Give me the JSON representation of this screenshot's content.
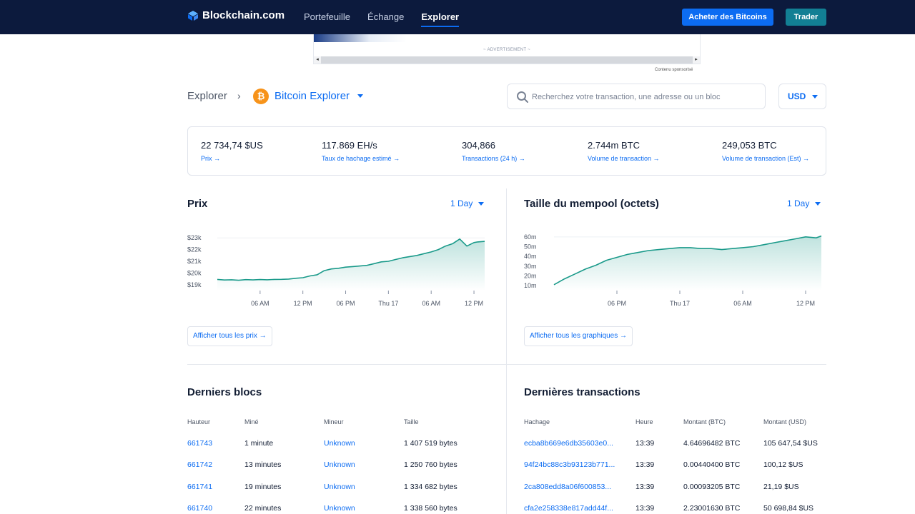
{
  "header": {
    "logo": "Blockchain.com",
    "nav": [
      "Portefeuille",
      "Échange",
      "Explorer"
    ],
    "buy_button": "Acheter des Bitcoins",
    "trade_button": "Trader",
    "colors": {
      "bar": "#0c1a3d",
      "accent": "#0c6cf2",
      "trade": "#127f94"
    }
  },
  "ad": {
    "label": "~ ADVERTISEMENT ~",
    "sponsored": "Contenu sponsorisé"
  },
  "breadcrumb": {
    "root": "Explorer",
    "separator": "›",
    "current": "Bitcoin Explorer",
    "coin_icon": "bitcoin-icon"
  },
  "search": {
    "placeholder": "Recherchez votre transaction, une adresse ou un bloc"
  },
  "currency": "USD",
  "stats": [
    {
      "value": "22 734,74 $US",
      "label": "Prix →"
    },
    {
      "value": "117.869 EH/s",
      "label": "Taux de hachage estimé →"
    },
    {
      "value": "304,866",
      "label": "Transactions (24 h) →"
    },
    {
      "value": "2.744m BTC",
      "label": "Volume de transaction →"
    },
    {
      "value": "249,053 BTC",
      "label": "Volume de transaction (Est) →"
    }
  ],
  "price_panel": {
    "title": "Prix",
    "range": "1 Day",
    "link": "Afficher tous les prix →"
  },
  "mempool_panel": {
    "title": "Taille du mempool (octets)",
    "range": "1 Day",
    "link": "Afficher tous les graphiques →"
  },
  "chart_data": [
    {
      "type": "area",
      "title": "Prix",
      "y_ticks": [
        "$23k",
        "$22k",
        "$21k",
        "$20k",
        "$19k"
      ],
      "y_tick_values": [
        23000,
        22000,
        21000,
        20000,
        19000
      ],
      "x_ticks": [
        "06 AM",
        "12 PM",
        "06 PM",
        "Thu 17",
        "06 AM",
        "12 PM"
      ],
      "x_tick_positions": [
        6,
        12,
        18,
        24,
        30,
        36
      ],
      "ylim": [
        18500,
        23500
      ],
      "xlim": [
        0,
        37.5
      ],
      "color": "#1a9a8a",
      "series": [
        {
          "x": [
            0,
            1,
            2,
            3,
            4,
            5,
            6,
            7,
            8,
            9,
            10,
            11,
            12,
            13,
            14,
            15,
            16,
            17,
            18,
            19,
            20,
            21,
            22,
            23,
            24,
            25,
            26,
            27,
            28,
            29,
            30,
            31,
            32,
            33,
            34,
            35,
            36,
            36.5,
            37.5
          ],
          "values": [
            19450,
            19400,
            19420,
            19380,
            19430,
            19410,
            19440,
            19420,
            19450,
            19460,
            19480,
            19550,
            19600,
            19750,
            19850,
            20200,
            20350,
            20400,
            20500,
            20550,
            20600,
            20650,
            20800,
            20950,
            21000,
            21150,
            21300,
            21400,
            21500,
            21650,
            21800,
            22000,
            22300,
            22500,
            22900,
            22300,
            22600,
            22650,
            22700
          ]
        }
      ]
    },
    {
      "type": "area",
      "title": "Taille du mempool (octets)",
      "y_ticks": [
        "60m",
        "50m",
        "40m",
        "30m",
        "20m",
        "10m"
      ],
      "y_tick_values": [
        60,
        50,
        40,
        30,
        20,
        10
      ],
      "x_ticks": [
        "06 PM",
        "Thu 17",
        "06 AM",
        "12 PM"
      ],
      "x_tick_positions": [
        6,
        12,
        18,
        24
      ],
      "ylim": [
        5,
        65
      ],
      "xlim": [
        0,
        25.5
      ],
      "color": "#1a9a8a",
      "series": [
        {
          "x": [
            0,
            1,
            2,
            3,
            4,
            5,
            6,
            7,
            8,
            9,
            10,
            11,
            12,
            13,
            14,
            15,
            16,
            17,
            18,
            19,
            20,
            21,
            22,
            23,
            24,
            25,
            25.5
          ],
          "values": [
            11,
            17,
            22,
            27,
            31,
            36,
            39,
            42,
            44,
            46,
            47,
            48,
            49,
            49,
            48,
            48,
            47,
            48,
            49,
            50,
            52,
            54,
            56,
            58,
            60,
            59,
            61
          ]
        }
      ]
    }
  ],
  "blocks": {
    "title": "Derniers blocs",
    "columns": [
      "Hauteur",
      "Miné",
      "Mineur",
      "Taille"
    ],
    "rows": [
      [
        "661743",
        "1 minute",
        "Unknown",
        "1 407 519 bytes"
      ],
      [
        "661742",
        "13 minutes",
        "Unknown",
        "1 250 760 bytes"
      ],
      [
        "661741",
        "19 minutes",
        "Unknown",
        "1 334 682 bytes"
      ],
      [
        "661740",
        "22 minutes",
        "Unknown",
        "1 338 560 bytes"
      ]
    ]
  },
  "transactions": {
    "title": "Dernières transactions",
    "columns": [
      "Hachage",
      "Heure",
      "Montant (BTC)",
      "Montant (USD)"
    ],
    "rows": [
      [
        "ecba8b669e6db35603e0...",
        "13:39",
        "4.64696482 BTC",
        "105 647,54 $US"
      ],
      [
        "94f24bc88c3b93123b771...",
        "13:39",
        "0.00440400 BTC",
        "100,12 $US"
      ],
      [
        "2ca808edd8a06f600853...",
        "13:39",
        "0.00093205 BTC",
        "21,19 $US"
      ],
      [
        "cfa2e258338e817add44f...",
        "13:39",
        "2.23001630 BTC",
        "50 698,84 $US"
      ]
    ]
  }
}
